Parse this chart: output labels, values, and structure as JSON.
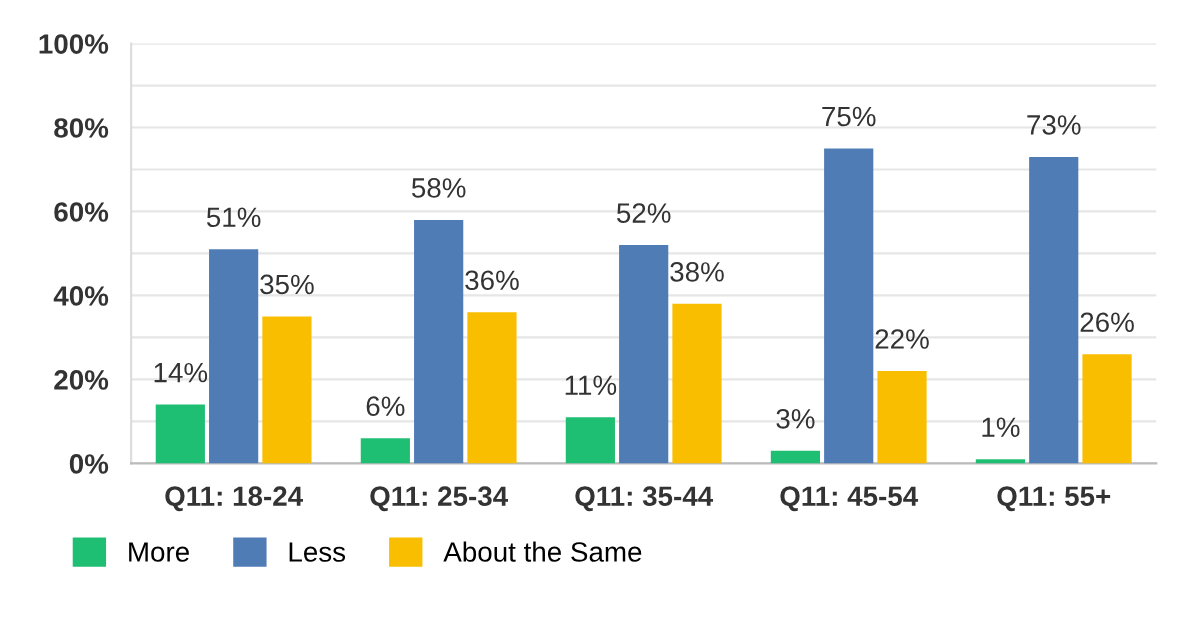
{
  "chart_data": {
    "type": "bar",
    "categories": [
      "Q11: 18-24",
      "Q11: 25-34",
      "Q11: 35-44",
      "Q11: 45-54",
      "Q11: 55+"
    ],
    "series": [
      {
        "name": "More",
        "color": "#1fbf73",
        "values": [
          14,
          6,
          11,
          3,
          1
        ],
        "value_labels": [
          "14%",
          "6%",
          "11%",
          "3%",
          "1%"
        ]
      },
      {
        "name": "Less",
        "color": "#507cb6",
        "values": [
          51,
          58,
          52,
          75,
          73
        ],
        "value_labels": [
          "51%",
          "58%",
          "52%",
          "75%",
          "73%"
        ]
      },
      {
        "name": "About the Same",
        "color": "#f9be00",
        "values": [
          35,
          36,
          38,
          22,
          26
        ],
        "value_labels": [
          "35%",
          "36%",
          "38%",
          "22%",
          "26%"
        ]
      }
    ],
    "ylim": [
      0,
      100
    ],
    "yticks": [
      {
        "value": 0,
        "label": "0%"
      },
      {
        "value": 10,
        "label": null
      },
      {
        "value": 20,
        "label": "20%"
      },
      {
        "value": 30,
        "label": null
      },
      {
        "value": 40,
        "label": "40%"
      },
      {
        "value": 50,
        "label": null
      },
      {
        "value": 60,
        "label": "60%"
      },
      {
        "value": 70,
        "label": null
      },
      {
        "value": 80,
        "label": "80%"
      },
      {
        "value": 90,
        "label": null
      },
      {
        "value": 100,
        "label": "100%"
      }
    ],
    "grid": "y",
    "legend": "bottom left"
  }
}
